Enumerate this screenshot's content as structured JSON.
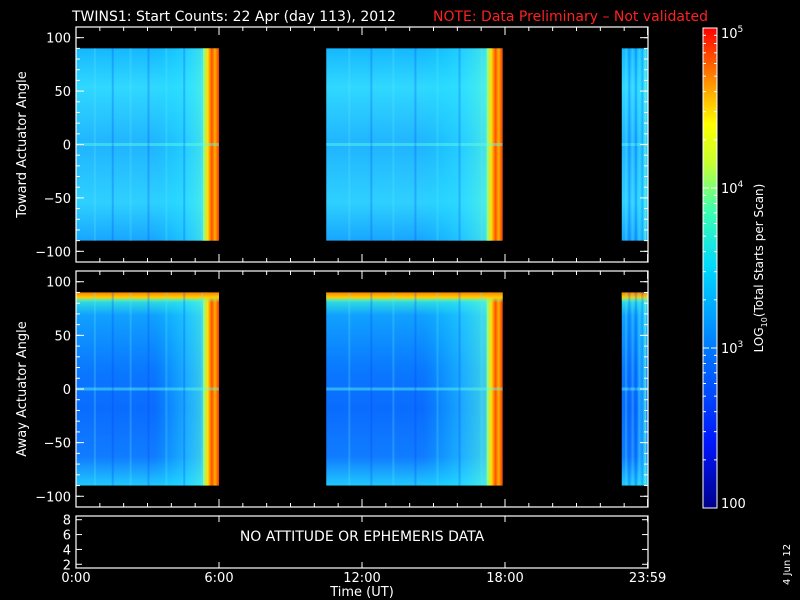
{
  "title": {
    "main": "TWINS1: Start Counts: 22 Apr (day 113), 2012",
    "note": "NOTE: Data Preliminary – Not validated",
    "note_color": "#ff2020"
  },
  "stamp": "4 Jun 12",
  "chart_data": [
    {
      "type": "heatmap",
      "name": "top-panel",
      "ylabel": "Toward Actuator Angle",
      "ylim": [
        -110,
        110
      ],
      "yticks": [
        -100,
        -50,
        0,
        50,
        100
      ],
      "xlim": [
        0,
        24
      ],
      "data_ylim": [
        -90,
        90
      ],
      "data_segments_hours": [
        [
          0,
          6.0
        ],
        [
          10.5,
          17.9
        ],
        [
          22.9,
          24
        ]
      ],
      "dominant_log10_counts": 3.2
    },
    {
      "type": "heatmap",
      "name": "bottom-panel",
      "ylabel": "Away Actuator Angle",
      "ylim": [
        -110,
        110
      ],
      "yticks": [
        -100,
        -50,
        0,
        50,
        100
      ],
      "xlim": [
        0,
        24
      ],
      "data_ylim": [
        -90,
        90
      ],
      "data_segments_hours": [
        [
          0,
          6.0
        ],
        [
          10.5,
          17.9
        ],
        [
          22.9,
          24
        ]
      ],
      "dominant_log10_counts": 2.8
    },
    {
      "type": "line",
      "name": "attitude-panel",
      "yticks": [
        2,
        4,
        6,
        8
      ],
      "ylim": [
        1.5,
        8.5
      ],
      "message": "NO ATTITUDE OR EPHEMERIS DATA"
    }
  ],
  "x_axis": {
    "label": "Time (UT)",
    "ticks": [
      {
        "hour": 0,
        "label": "0:00"
      },
      {
        "hour": 6,
        "label": "6:00"
      },
      {
        "hour": 12,
        "label": "12:00"
      },
      {
        "hour": 18,
        "label": "18:00"
      },
      {
        "hour": 23.983,
        "label": "23:59"
      }
    ]
  },
  "colorbar": {
    "label_pre": "LOG",
    "label_sub": "10",
    "label_post": "(Total Starts per Scan)",
    "scale": "log",
    "range": [
      100,
      100000
    ],
    "ticks": [
      {
        "value": 100,
        "label": "100"
      },
      {
        "value": 1000,
        "label_base": "10",
        "label_exp": "3"
      },
      {
        "value": 10000,
        "label_base": "10",
        "label_exp": "4"
      },
      {
        "value": 100000,
        "label_base": "10",
        "label_exp": "5"
      }
    ]
  }
}
